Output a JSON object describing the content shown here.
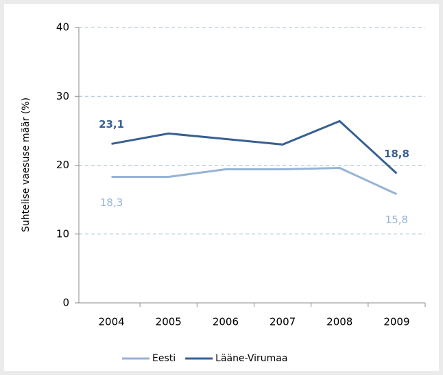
{
  "chart_data": {
    "type": "line",
    "y_label": "Suhtelise vaesuse määr (%)",
    "categories": [
      "2004",
      "2005",
      "2006",
      "2007",
      "2008",
      "2009"
    ],
    "series": [
      {
        "name": "Eesti",
        "color": "#95b3d7",
        "values": [
          18.3,
          18.3,
          19.4,
          19.4,
          19.6,
          15.8
        ],
        "value_labels": [
          "18,3",
          null,
          null,
          null,
          null,
          "15,8"
        ]
      },
      {
        "name": "Lääne-Virumaa",
        "color": "#376092",
        "values": [
          23.1,
          24.6,
          23.8,
          23.0,
          26.4,
          18.8
        ],
        "value_labels": [
          "23,1",
          null,
          null,
          null,
          null,
          "18,8"
        ]
      }
    ],
    "ylim": [
      0,
      40
    ],
    "yticks": [
      0,
      10,
      20,
      30,
      40
    ],
    "grid": true,
    "legend": "bottom"
  }
}
